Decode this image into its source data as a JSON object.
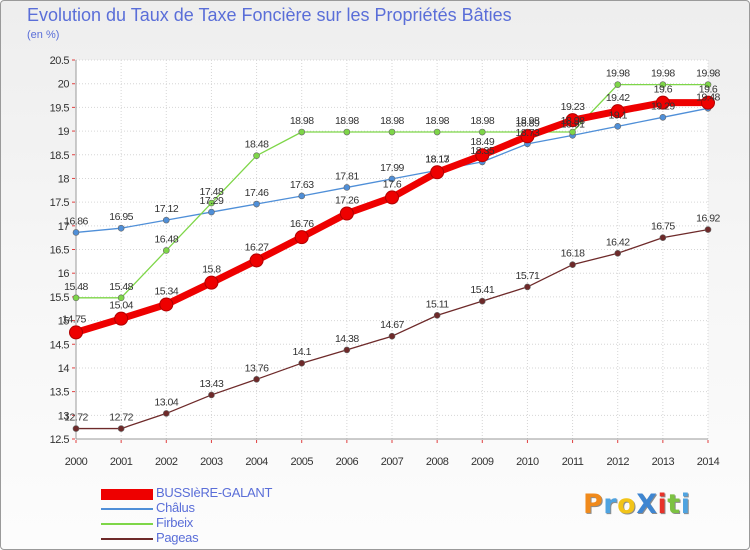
{
  "title": "Evolution du Taux de Taxe Foncière sur les Propriétés Bâties",
  "unit_label": "(en %)",
  "chart_data": {
    "type": "line",
    "categories": [
      "2000",
      "2001",
      "2002",
      "2003",
      "2004",
      "2005",
      "2006",
      "2007",
      "2008",
      "2009",
      "2010",
      "2011",
      "2012",
      "2013",
      "2014"
    ],
    "yaxis": {
      "min": 12.5,
      "max": 20.5,
      "ticks": [
        "12.5",
        "13",
        "13.5",
        "14",
        "14.5",
        "15",
        "15.5",
        "16",
        "16.5",
        "17",
        "17.5",
        "18",
        "18.5",
        "19",
        "19.5",
        "20",
        "20.5"
      ]
    },
    "series": [
      {
        "name": "BUSSIèRE-GALANT",
        "color": "#ee0000",
        "values": [
          14.75,
          15.04,
          15.34,
          15.8,
          16.27,
          16.76,
          17.26,
          17.6,
          18.13,
          18.49,
          18.89,
          19.23,
          19.42,
          19.6,
          19.6
        ],
        "labels": [
          "14.75",
          "15.04",
          "15.34",
          "15.8",
          "16.27",
          "16.76",
          "17.26",
          "17.6",
          "18.13",
          "18.49",
          "18.89",
          "19.23",
          "19.42",
          "19.6",
          "19.6"
        ]
      },
      {
        "name": "Châlus",
        "color": "#4f8fd8",
        "values": [
          16.86,
          16.95,
          17.12,
          17.29,
          17.46,
          17.63,
          17.81,
          17.99,
          18.17,
          18.35,
          18.73,
          18.91,
          19.1,
          19.29,
          19.48
        ],
        "labels": [
          "16.86",
          "16.95",
          "17.12",
          "17.29",
          "17.46",
          "17.63",
          "17.81",
          "17.99",
          "18.17",
          "18.35",
          "18.73",
          "18.91",
          "19.1",
          "19.29",
          "19.48"
        ]
      },
      {
        "name": "Firbeix",
        "color": "#7ed648",
        "values": [
          15.48,
          15.48,
          16.48,
          17.48,
          18.48,
          18.98,
          18.98,
          18.98,
          18.98,
          18.98,
          18.98,
          18.98,
          19.98,
          19.98,
          19.98
        ],
        "labels": [
          "15.48",
          "15.48",
          "16.48",
          "17.48",
          "18.48",
          "18.98",
          "18.98",
          "18.98",
          "18.98",
          "18.98",
          "18.98",
          "18.98",
          "19.98",
          "19.98",
          "19.98"
        ]
      },
      {
        "name": "Pageas",
        "color": "#6e2a2a",
        "values": [
          12.72,
          12.72,
          13.04,
          13.43,
          13.76,
          14.1,
          14.38,
          14.67,
          15.11,
          15.41,
          15.71,
          16.18,
          16.42,
          16.75,
          16.92
        ],
        "labels": [
          "12.72",
          "12.72",
          "13.04",
          "13.43",
          "13.76",
          "14.1",
          "14.38",
          "14.67",
          "15.11",
          "15.41",
          "15.71",
          "16.18",
          "16.42",
          "16.75",
          "16.92"
        ]
      }
    ]
  },
  "logo": {
    "text": "ProXiti",
    "letters": [
      {
        "ch": "P",
        "color": "#f08a1c"
      },
      {
        "ch": "r",
        "color": "#4fa3e0"
      },
      {
        "ch": "o",
        "color": "#f2c418"
      },
      {
        "ch": "X",
        "color": "#3f86d1"
      },
      {
        "ch": "i",
        "color": "#e8322a"
      },
      {
        "ch": "t",
        "color": "#7cc242"
      },
      {
        "ch": "i",
        "color": "#4fa3e0"
      }
    ]
  }
}
